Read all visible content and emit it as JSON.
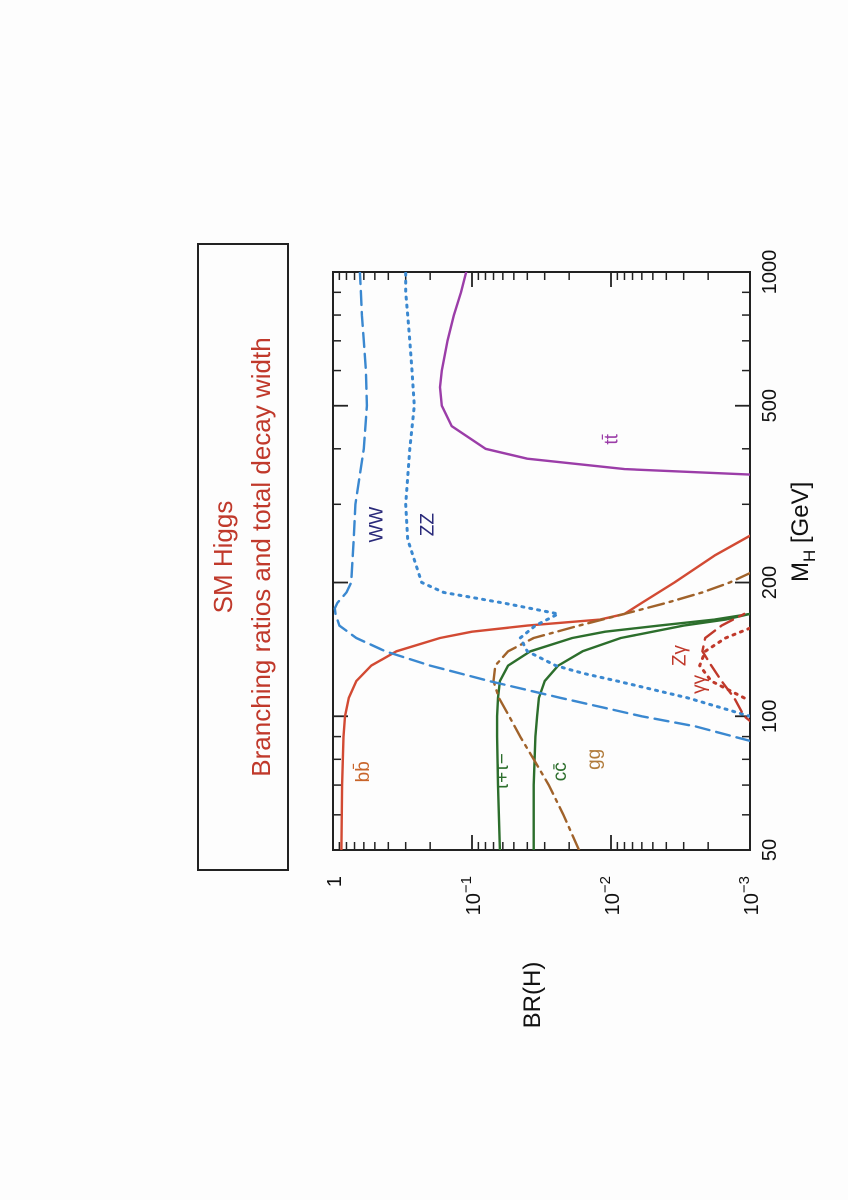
{
  "chart_data": {
    "type": "line",
    "title": "SM Higgs",
    "subtitle": "Branching ratios and total decay width",
    "xlabel": "M",
    "xlabel_sub": "H",
    "xlabel_unit": " [GeV]",
    "ylabel": "BR(H)",
    "x_scale": "log",
    "y_scale": "log",
    "xlim": [
      50,
      1000
    ],
    "ylim": [
      0.001,
      1
    ],
    "x_ticks": [
      {
        "value": 50,
        "label": "50"
      },
      {
        "value": 100,
        "label": "100"
      },
      {
        "value": 200,
        "label": "200"
      },
      {
        "value": 500,
        "label": "500"
      },
      {
        "value": 1000,
        "label": "1000"
      }
    ],
    "y_ticks": [
      {
        "value": 0.001,
        "base": "10",
        "exp": "−3"
      },
      {
        "value": 0.01,
        "base": "10",
        "exp": "−2"
      },
      {
        "value": 0.1,
        "base": "10",
        "exp": "−1"
      },
      {
        "value": 1,
        "base": "1",
        "exp": ""
      }
    ],
    "colors": {
      "title": "#c0392b",
      "frame": "#222222"
    },
    "series": [
      {
        "name": "bb̄",
        "label_text": "bb̄",
        "color": "#d24a33",
        "dash": "solid",
        "points": [
          [
            50,
            0.87
          ],
          [
            70,
            0.86
          ],
          [
            90,
            0.84
          ],
          [
            100,
            0.82
          ],
          [
            110,
            0.77
          ],
          [
            120,
            0.68
          ],
          [
            130,
            0.53
          ],
          [
            140,
            0.35
          ],
          [
            150,
            0.17
          ],
          [
            155,
            0.1
          ],
          [
            160,
            0.04
          ],
          [
            165,
            0.012
          ],
          [
            170,
            0.008
          ],
          [
            180,
            0.006
          ],
          [
            200,
            0.0035
          ],
          [
            230,
            0.0018
          ],
          [
            255,
            0.001
          ]
        ],
        "label_at": [
          75,
          0.55
        ],
        "label_color": "#c8642a"
      },
      {
        "name": "τ+τ−",
        "label_text": "τ+τ−",
        "color": "#2c6e2c",
        "dash": "solid",
        "points": [
          [
            50,
            0.063
          ],
          [
            70,
            0.065
          ],
          [
            90,
            0.066
          ],
          [
            100,
            0.066
          ],
          [
            110,
            0.065
          ],
          [
            120,
            0.063
          ],
          [
            130,
            0.055
          ],
          [
            140,
            0.038
          ],
          [
            150,
            0.019
          ],
          [
            155,
            0.011
          ],
          [
            160,
            0.0045
          ],
          [
            165,
            0.0018
          ],
          [
            170,
            0.001
          ]
        ],
        "label_at": [
          75,
          0.055
        ],
        "label_color": "#2c6e2c"
      },
      {
        "name": "cc̄",
        "label_text": "cc̄",
        "color": "#2c6e2c",
        "dash": "solid",
        "points": [
          [
            50,
            0.036
          ],
          [
            70,
            0.036
          ],
          [
            90,
            0.035
          ],
          [
            100,
            0.034
          ],
          [
            110,
            0.033
          ],
          [
            120,
            0.03
          ],
          [
            130,
            0.024
          ],
          [
            140,
            0.016
          ],
          [
            150,
            0.0085
          ],
          [
            160,
            0.003
          ],
          [
            165,
            0.0015
          ],
          [
            170,
            0.001
          ]
        ],
        "label_at": [
          75,
          0.021
        ],
        "label_color": "#2c6e2c"
      },
      {
        "name": "gg",
        "label_text": "gg",
        "color": "#a0622a",
        "dash": "dashdot",
        "points": [
          [
            50,
            0.017
          ],
          [
            60,
            0.022
          ],
          [
            70,
            0.028
          ],
          [
            80,
            0.036
          ],
          [
            90,
            0.045
          ],
          [
            100,
            0.054
          ],
          [
            110,
            0.064
          ],
          [
            120,
            0.07
          ],
          [
            130,
            0.068
          ],
          [
            140,
            0.055
          ],
          [
            150,
            0.036
          ],
          [
            160,
            0.017
          ],
          [
            170,
            0.008
          ],
          [
            180,
            0.004
          ],
          [
            190,
            0.0022
          ],
          [
            200,
            0.0014
          ],
          [
            210,
            0.001
          ]
        ],
        "label_at": [
          80,
          0.012
        ],
        "label_color": "#b07a3a"
      },
      {
        "name": "WW",
        "label_text": "WW",
        "color": "#3a88d0",
        "dash": "dashed",
        "points": [
          [
            88,
            0.001
          ],
          [
            95,
            0.0025
          ],
          [
            100,
            0.006
          ],
          [
            110,
            0.023
          ],
          [
            120,
            0.075
          ],
          [
            130,
            0.2
          ],
          [
            140,
            0.42
          ],
          [
            150,
            0.68
          ],
          [
            160,
            0.9
          ],
          [
            170,
            0.96
          ],
          [
            175,
            0.97
          ],
          [
            180,
            0.93
          ],
          [
            190,
            0.8
          ],
          [
            200,
            0.74
          ],
          [
            250,
            0.71
          ],
          [
            300,
            0.69
          ],
          [
            400,
            0.6
          ],
          [
            500,
            0.57
          ],
          [
            600,
            0.58
          ],
          [
            700,
            0.6
          ],
          [
            800,
            0.62
          ],
          [
            900,
            0.63
          ],
          [
            1000,
            0.64
          ]
        ],
        "label_at": [
          270,
          0.44
        ],
        "label_color": "#2a2a7a"
      },
      {
        "name": "ZZ",
        "label_text": "ZZ",
        "color": "#3a88d0",
        "dash": "dotted",
        "points": [
          [
            100,
            0.001
          ],
          [
            110,
            0.0028
          ],
          [
            120,
            0.009
          ],
          [
            125,
            0.016
          ],
          [
            130,
            0.025
          ],
          [
            140,
            0.04
          ],
          [
            150,
            0.045
          ],
          [
            160,
            0.035
          ],
          [
            170,
            0.024
          ],
          [
            180,
            0.06
          ],
          [
            190,
            0.16
          ],
          [
            200,
            0.23
          ],
          [
            250,
            0.29
          ],
          [
            300,
            0.3
          ],
          [
            400,
            0.28
          ],
          [
            500,
            0.26
          ],
          [
            600,
            0.27
          ],
          [
            700,
            0.28
          ],
          [
            800,
            0.29
          ],
          [
            900,
            0.3
          ],
          [
            1000,
            0.3
          ]
        ],
        "label_at": [
          270,
          0.19
        ],
        "label_color": "#2a2a7a"
      },
      {
        "name": "tt̄",
        "label_text": "tt̄",
        "color": "#9b3da8",
        "dash": "solid",
        "points": [
          [
            350,
            0.001
          ],
          [
            360,
            0.008
          ],
          [
            380,
            0.04
          ],
          [
            400,
            0.08
          ],
          [
            450,
            0.14
          ],
          [
            500,
            0.165
          ],
          [
            550,
            0.17
          ],
          [
            600,
            0.165
          ],
          [
            700,
            0.15
          ],
          [
            800,
            0.135
          ],
          [
            900,
            0.12
          ],
          [
            1000,
            0.11
          ]
        ],
        "label_at": [
          420,
          0.009
        ],
        "label_color": "#9b3da8"
      },
      {
        "name": "γγ",
        "label_text": "γγ",
        "color": "#c0392b",
        "dash": "dotted",
        "points": [
          [
            110,
            0.0011
          ],
          [
            120,
            0.0019
          ],
          [
            130,
            0.0023
          ],
          [
            140,
            0.0021
          ],
          [
            150,
            0.0015
          ],
          [
            160,
            0.0009
          ]
        ],
        "label_at": [
          118,
          0.0021
        ],
        "label_color": "#c0392b"
      },
      {
        "name": "Zγ",
        "label_text": "Zγ",
        "color": "#c0392b",
        "dash": "dashed",
        "points": [
          [
            95,
            0.0009
          ],
          [
            100,
            0.0011
          ],
          [
            110,
            0.0013
          ],
          [
            120,
            0.0016
          ],
          [
            130,
            0.0019
          ],
          [
            140,
            0.0022
          ],
          [
            150,
            0.0021
          ],
          [
            160,
            0.0016
          ],
          [
            170,
            0.0011
          ]
        ],
        "label_at": [
          137,
          0.0029
        ],
        "label_color": "#c0392b"
      }
    ]
  }
}
